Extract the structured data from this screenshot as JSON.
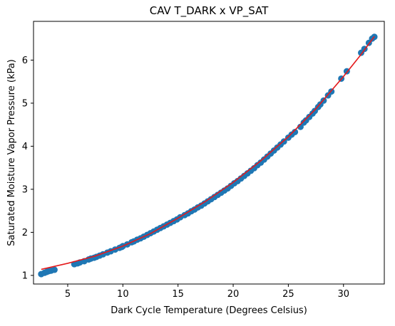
{
  "chart_data": {
    "type": "scatter",
    "title": "CAV T_DARK x VP_SAT",
    "xlabel": "Dark Cycle Temperature (Degrees Celsius)",
    "ylabel": "Saturated Moisture Vapor Pressure (kPa)",
    "xlim": [
      1.9,
      33.7
    ],
    "ylim": [
      0.8,
      6.9
    ],
    "xticks": [
      5,
      10,
      15,
      20,
      25,
      30
    ],
    "yticks": [
      1,
      2,
      3,
      4,
      5,
      6
    ],
    "grid": false,
    "legend": "none",
    "series": [
      {
        "type": "scatter",
        "color": "#1f77b4",
        "points": [
          [
            2.6,
            1.03
          ],
          [
            2.9,
            1.06
          ],
          [
            3.1,
            1.08
          ],
          [
            3.3,
            1.1
          ],
          [
            3.5,
            1.11
          ],
          [
            3.8,
            1.13
          ],
          [
            5.6,
            1.26
          ],
          [
            5.9,
            1.28
          ],
          [
            6.1,
            1.3
          ],
          [
            6.5,
            1.33
          ],
          [
            6.9,
            1.37
          ],
          [
            7.1,
            1.39
          ],
          [
            7.4,
            1.41
          ],
          [
            7.6,
            1.43
          ],
          [
            7.9,
            1.46
          ],
          [
            8.2,
            1.49
          ],
          [
            8.6,
            1.53
          ],
          [
            8.9,
            1.56
          ],
          [
            9.3,
            1.6
          ],
          [
            9.7,
            1.64
          ],
          [
            9.9,
            1.66
          ],
          [
            10.0,
            1.68
          ],
          [
            10.4,
            1.72
          ],
          [
            10.8,
            1.77
          ],
          [
            11.0,
            1.79
          ],
          [
            11.3,
            1.83
          ],
          [
            11.6,
            1.86
          ],
          [
            11.9,
            1.9
          ],
          [
            12.2,
            1.94
          ],
          [
            12.5,
            1.98
          ],
          [
            12.8,
            2.02
          ],
          [
            13.1,
            2.06
          ],
          [
            13.4,
            2.1
          ],
          [
            13.7,
            2.14
          ],
          [
            14.0,
            2.18
          ],
          [
            14.3,
            2.22
          ],
          [
            14.6,
            2.26
          ],
          [
            14.9,
            2.3
          ],
          [
            15.2,
            2.35
          ],
          [
            15.6,
            2.4
          ],
          [
            15.9,
            2.44
          ],
          [
            16.2,
            2.49
          ],
          [
            16.5,
            2.53
          ],
          [
            16.8,
            2.58
          ],
          [
            17.1,
            2.62
          ],
          [
            17.4,
            2.67
          ],
          [
            17.7,
            2.72
          ],
          [
            18.0,
            2.77
          ],
          [
            18.3,
            2.82
          ],
          [
            18.6,
            2.87
          ],
          [
            18.9,
            2.92
          ],
          [
            19.2,
            2.97
          ],
          [
            19.5,
            3.02
          ],
          [
            19.8,
            3.08
          ],
          [
            20.1,
            3.14
          ],
          [
            20.4,
            3.19
          ],
          [
            20.7,
            3.25
          ],
          [
            21.0,
            3.31
          ],
          [
            21.3,
            3.37
          ],
          [
            21.6,
            3.43
          ],
          [
            21.9,
            3.49
          ],
          [
            22.2,
            3.56
          ],
          [
            22.5,
            3.62
          ],
          [
            22.8,
            3.69
          ],
          [
            23.1,
            3.76
          ],
          [
            23.4,
            3.83
          ],
          [
            23.7,
            3.9
          ],
          [
            24.0,
            3.97
          ],
          [
            24.3,
            4.04
          ],
          [
            24.6,
            4.11
          ],
          [
            25.0,
            4.2
          ],
          [
            25.3,
            4.27
          ],
          [
            25.6,
            4.33
          ],
          [
            26.1,
            4.45
          ],
          [
            26.4,
            4.55
          ],
          [
            26.6,
            4.6
          ],
          [
            26.9,
            4.68
          ],
          [
            27.2,
            4.76
          ],
          [
            27.4,
            4.82
          ],
          [
            27.7,
            4.91
          ],
          [
            27.9,
            4.97
          ],
          [
            28.2,
            5.06
          ],
          [
            28.6,
            5.18
          ],
          [
            28.9,
            5.27
          ],
          [
            29.8,
            5.57
          ],
          [
            30.3,
            5.74
          ],
          [
            31.6,
            6.17
          ],
          [
            31.9,
            6.26
          ],
          [
            32.3,
            6.4
          ],
          [
            32.6,
            6.5
          ],
          [
            32.8,
            6.54
          ]
        ]
      },
      {
        "type": "line",
        "color": "#e41a1c",
        "points": [
          [
            2.6,
            1.14
          ],
          [
            5.0,
            1.28
          ],
          [
            7.5,
            1.45
          ],
          [
            10.0,
            1.68
          ],
          [
            12.5,
            1.97
          ],
          [
            15.0,
            2.33
          ],
          [
            17.5,
            2.72
          ],
          [
            20.0,
            3.16
          ],
          [
            22.5,
            3.66
          ],
          [
            25.0,
            4.22
          ],
          [
            27.5,
            4.87
          ],
          [
            30.0,
            5.62
          ],
          [
            31.5,
            6.1
          ],
          [
            32.8,
            6.55
          ]
        ]
      }
    ]
  }
}
